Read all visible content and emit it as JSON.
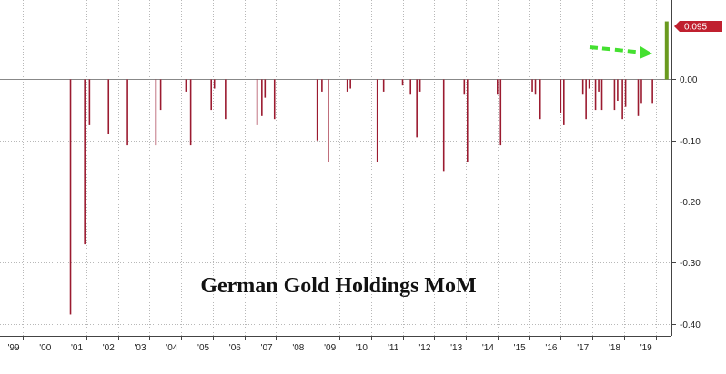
{
  "chart_data": {
    "type": "bar",
    "title": "German Gold Holdings MoM",
    "xlabel": "",
    "ylabel": "",
    "ylim": [
      -0.42,
      0.13
    ],
    "y_ticks": [
      0.0,
      -0.1,
      -0.2,
      -0.3,
      -0.4
    ],
    "y_tick_labels": [
      "0.00",
      "-0.10",
      "-0.20",
      "-0.30",
      "-0.40"
    ],
    "x_tick_labels": [
      "'99",
      "'00",
      "'01",
      "'02",
      "'03",
      "'04",
      "'05",
      "'06",
      "'07",
      "'08",
      "'09",
      "'10",
      "'11",
      "'12",
      "'13",
      "'14",
      "'15",
      "'16",
      "'17",
      "'18",
      "'19"
    ],
    "x_range": [
      1999.0,
      2020.0
    ],
    "grid": true,
    "last_value_label": "0.095",
    "series": [
      {
        "color": "#9b1b30",
        "x": [
          2001.0,
          2001.45,
          2001.6,
          2002.2,
          2002.8,
          2003.7,
          2003.85,
          2004.65,
          2004.8,
          2005.45,
          2005.55,
          2005.9,
          2006.9,
          2007.05,
          2007.15,
          2007.45,
          2008.8,
          2008.95,
          2009.15,
          2009.75,
          2009.85,
          2010.7,
          2010.9,
          2011.5,
          2011.75,
          2011.95,
          2012.05,
          2012.8,
          2013.45,
          2013.55,
          2014.5,
          2014.6,
          2015.6,
          2015.7,
          2015.85,
          2016.5,
          2016.6,
          2017.2,
          2017.3,
          2017.4,
          2017.6,
          2017.7,
          2017.8,
          2018.2,
          2018.3,
          2018.45,
          2018.55,
          2018.95,
          2019.05,
          2019.4
        ],
        "values": [
          -0.385,
          -0.27,
          -0.075,
          -0.09,
          -0.108,
          -0.108,
          -0.05,
          -0.02,
          -0.108,
          -0.05,
          -0.015,
          -0.065,
          -0.075,
          -0.06,
          -0.03,
          -0.065,
          -0.1,
          -0.02,
          -0.135,
          -0.02,
          -0.015,
          -0.135,
          -0.02,
          -0.01,
          -0.025,
          -0.095,
          -0.02,
          -0.15,
          -0.025,
          -0.135,
          -0.025,
          -0.108,
          -0.02,
          -0.025,
          -0.065,
          -0.055,
          -0.075,
          -0.025,
          -0.065,
          -0.015,
          -0.05,
          -0.02,
          -0.05,
          -0.05,
          -0.035,
          -0.065,
          -0.045,
          -0.06,
          -0.04,
          -0.04
        ]
      },
      {
        "color": "#6a9a1f",
        "x": [
          2019.85
        ],
        "values": [
          0.095
        ]
      }
    ]
  }
}
